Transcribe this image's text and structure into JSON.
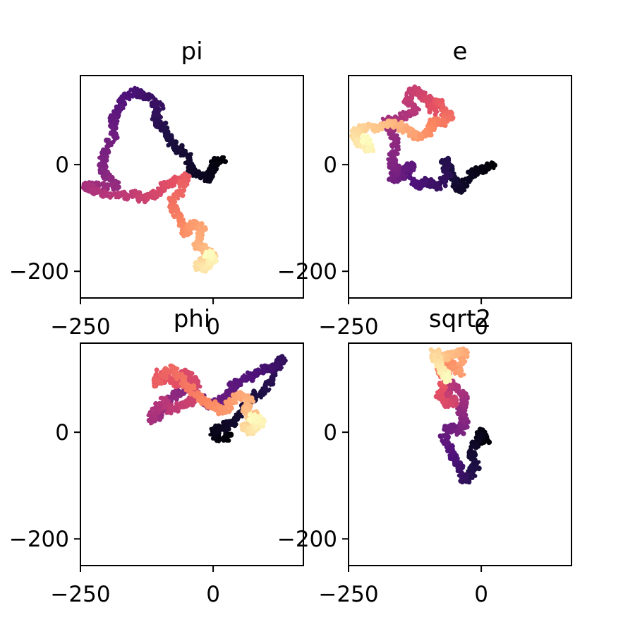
{
  "figure": {
    "background": "#ffffff",
    "colormap": "magma"
  },
  "chart_data": [
    {
      "type": "scatter",
      "title": "pi",
      "colormap": "magma",
      "xlim": [
        -250,
        170
      ],
      "ylim": [
        -250,
        167
      ],
      "xticks": [
        -250,
        0
      ],
      "xtick_labels": [
        "−250",
        "0"
      ],
      "yticks": [
        0,
        -200
      ],
      "ytick_labels": [
        "0",
        "−200"
      ],
      "path": [
        [
          20,
          10
        ],
        [
          0,
          0
        ],
        [
          -10,
          -30
        ],
        [
          -40,
          -10
        ],
        [
          -50,
          20
        ],
        [
          -80,
          40
        ],
        [
          -90,
          70
        ],
        [
          -110,
          80
        ],
        [
          -100,
          110
        ],
        [
          -130,
          130
        ],
        [
          -150,
          140
        ],
        [
          -170,
          120
        ],
        [
          -180,
          100
        ],
        [
          -190,
          80
        ],
        [
          -185,
          60
        ],
        [
          -200,
          30
        ],
        [
          -210,
          0
        ],
        [
          -200,
          -20
        ],
        [
          -180,
          -40
        ],
        [
          -220,
          -40
        ],
        [
          -240,
          -40
        ],
        [
          -220,
          -50
        ],
        [
          -180,
          -60
        ],
        [
          -150,
          -55
        ],
        [
          -130,
          -65
        ],
        [
          -110,
          -55
        ],
        [
          -90,
          -40
        ],
        [
          -70,
          -30
        ],
        [
          -50,
          -20
        ],
        [
          -60,
          -50
        ],
        [
          -80,
          -70
        ],
        [
          -70,
          -90
        ],
        [
          -60,
          -110
        ],
        [
          -50,
          -130
        ],
        [
          -40,
          -110
        ],
        [
          -20,
          -120
        ],
        [
          -30,
          -150
        ],
        [
          -10,
          -160
        ],
        [
          0,
          -170
        ],
        [
          -20,
          -180
        ],
        [
          -30,
          -190
        ],
        [
          -15,
          -195
        ],
        [
          0,
          -175
        ],
        [
          -10,
          -165
        ]
      ]
    },
    {
      "type": "scatter",
      "title": "e",
      "colormap": "magma",
      "xlim": [
        -250,
        170
      ],
      "ylim": [
        -250,
        167
      ],
      "xticks": [
        -250,
        0
      ],
      "xtick_labels": [
        "−250",
        "0"
      ],
      "yticks": [
        0,
        -200
      ],
      "ytick_labels": [
        "0",
        "−200"
      ],
      "path": [
        [
          20,
          0
        ],
        [
          0,
          -10
        ],
        [
          -20,
          -20
        ],
        [
          -40,
          -50
        ],
        [
          -50,
          -30
        ],
        [
          -60,
          -10
        ],
        [
          -70,
          10
        ],
        [
          -60,
          -20
        ],
        [
          -80,
          -40
        ],
        [
          -100,
          -30
        ],
        [
          -120,
          -40
        ],
        [
          -140,
          -20
        ],
        [
          -130,
          0
        ],
        [
          -150,
          -20
        ],
        [
          -170,
          -30
        ],
        [
          -160,
          -10
        ],
        [
          -170,
          10
        ],
        [
          -160,
          40
        ],
        [
          -170,
          60
        ],
        [
          -180,
          80
        ],
        [
          -150,
          90
        ],
        [
          -120,
          100
        ],
        [
          -140,
          120
        ],
        [
          -130,
          140
        ],
        [
          -110,
          130
        ],
        [
          -100,
          120
        ],
        [
          -90,
          100
        ],
        [
          -80,
          120
        ],
        [
          -70,
          100
        ],
        [
          -60,
          90
        ],
        [
          -70,
          80
        ],
        [
          -90,
          80
        ],
        [
          -100,
          60
        ],
        [
          -120,
          50
        ],
        [
          -130,
          60
        ],
        [
          -150,
          70
        ],
        [
          -170,
          80
        ],
        [
          -190,
          70
        ],
        [
          -220,
          70
        ],
        [
          -240,
          60
        ],
        [
          -230,
          40
        ],
        [
          -210,
          30
        ],
        [
          -220,
          50
        ]
      ]
    },
    {
      "type": "scatter",
      "title": "phi",
      "colormap": "magma",
      "xlim": [
        -250,
        170
      ],
      "ylim": [
        -250,
        167
      ],
      "xticks": [
        -250,
        0
      ],
      "xtick_labels": [
        "−250",
        "0"
      ],
      "yticks": [
        0,
        -200
      ],
      "ytick_labels": [
        "0",
        "−200"
      ],
      "path": [
        [
          30,
          -10
        ],
        [
          10,
          -10
        ],
        [
          0,
          0
        ],
        [
          20,
          10
        ],
        [
          40,
          20
        ],
        [
          60,
          50
        ],
        [
          80,
          70
        ],
        [
          100,
          80
        ],
        [
          110,
          100
        ],
        [
          130,
          140
        ],
        [
          120,
          120
        ],
        [
          100,
          120
        ],
        [
          80,
          110
        ],
        [
          60,
          100
        ],
        [
          40,
          90
        ],
        [
          30,
          70
        ],
        [
          10,
          60
        ],
        [
          -10,
          50
        ],
        [
          -30,
          70
        ],
        [
          -50,
          80
        ],
        [
          -70,
          70
        ],
        [
          -90,
          50
        ],
        [
          -100,
          30
        ],
        [
          -120,
          20
        ],
        [
          -110,
          40
        ],
        [
          -90,
          60
        ],
        [
          -80,
          40
        ],
        [
          -60,
          50
        ],
        [
          -40,
          60
        ],
        [
          -30,
          90
        ],
        [
          -50,
          110
        ],
        [
          -70,
          90
        ],
        [
          -100,
          110
        ],
        [
          -110,
          90
        ],
        [
          -80,
          120
        ],
        [
          -60,
          100
        ],
        [
          -40,
          80
        ],
        [
          -20,
          60
        ],
        [
          0,
          50
        ],
        [
          20,
          40
        ],
        [
          40,
          60
        ],
        [
          50,
          70
        ],
        [
          70,
          60
        ],
        [
          60,
          40
        ],
        [
          80,
          30
        ],
        [
          70,
          20
        ],
        [
          60,
          10
        ],
        [
          70,
          0
        ],
        [
          80,
          10
        ],
        [
          90,
          20
        ],
        [
          70,
          30
        ]
      ]
    },
    {
      "type": "scatter",
      "title": "sqrt2",
      "colormap": "magma",
      "xlim": [
        -250,
        170
      ],
      "ylim": [
        -250,
        167
      ],
      "xticks": [
        -250,
        0
      ],
      "xtick_labels": [
        "−250",
        "0"
      ],
      "yticks": [
        0,
        -200
      ],
      "ytick_labels": [
        "0",
        "−200"
      ],
      "path": [
        [
          10,
          -20
        ],
        [
          0,
          0
        ],
        [
          -10,
          -20
        ],
        [
          -20,
          -40
        ],
        [
          -10,
          -60
        ],
        [
          -20,
          -80
        ],
        [
          -30,
          -90
        ],
        [
          -40,
          -70
        ],
        [
          -50,
          -50
        ],
        [
          -60,
          -30
        ],
        [
          -70,
          -10
        ],
        [
          -60,
          10
        ],
        [
          -40,
          0
        ],
        [
          -30,
          20
        ],
        [
          -40,
          40
        ],
        [
          -30,
          60
        ],
        [
          -40,
          80
        ],
        [
          -60,
          90
        ],
        [
          -70,
          70
        ],
        [
          -50,
          60
        ],
        [
          -60,
          50
        ],
        [
          -80,
          70
        ],
        [
          -70,
          100
        ],
        [
          -60,
          120
        ],
        [
          -70,
          130
        ],
        [
          -80,
          110
        ],
        [
          -60,
          130
        ],
        [
          -40,
          110
        ],
        [
          -30,
          150
        ],
        [
          -50,
          150
        ],
        [
          -70,
          140
        ],
        [
          -90,
          150
        ],
        [
          -80,
          130
        ],
        [
          -70,
          110
        ],
        [
          -60,
          100
        ]
      ]
    }
  ]
}
